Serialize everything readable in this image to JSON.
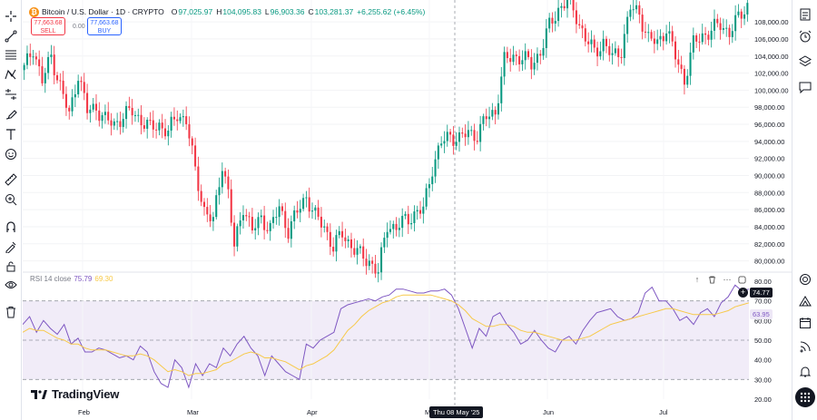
{
  "symbol": {
    "title": "Bitcoin / U.S. Dollar · 1D · CRYPTO",
    "logo_glyph": "₿",
    "ohlc": [
      {
        "label": "O",
        "value": "97,025.97"
      },
      {
        "label": "H",
        "value": "104,095.83"
      },
      {
        "label": "L",
        "value": "96,903.36"
      },
      {
        "label": "C",
        "value": "103,281.37"
      }
    ],
    "change": "+6,255.62 (+6.45%)"
  },
  "trade": {
    "sell_price": "77,663.68",
    "sell_label": "SELL",
    "spread": "0.00",
    "buy_price": "77,663.68",
    "buy_label": "BUY"
  },
  "price_axis": [
    "108,000.00",
    "106,000.00",
    "104,000.00",
    "102,000.00",
    "100,000.00",
    "98,000.00",
    "96,000.00",
    "94,000.00",
    "92,000.00",
    "90,000.00",
    "88,000.00",
    "86,000.00",
    "84,000.00",
    "82,000.00",
    "80,000.00"
  ],
  "rsi_axis": [
    "80.00",
    "70.00",
    "60.00",
    "50.00",
    "40.00",
    "30.00",
    "20.00"
  ],
  "time_axis": [
    "Feb",
    "Mar",
    "Apr",
    "May",
    "Jun",
    "Jul"
  ],
  "rsi": {
    "label": "RSI 14 close",
    "value": "75.79",
    "ma_value": "69.30",
    "tag_value": "74.77",
    "tag2_value": "63.95"
  },
  "crosshair": {
    "date": "Thu 08 May '25"
  },
  "brand": "TradingView",
  "colors": {
    "up": "#089981",
    "down": "#f23645",
    "rsi": "#7e57c2",
    "rsi_ma": "#f7c948",
    "band": "#ede7f6"
  },
  "chart_data": [
    {
      "type": "candlestick",
      "title": "Bitcoin / U.S. Dollar · 1D · CRYPTO",
      "x_ticks": [
        "Feb",
        "Mar",
        "Apr",
        "May",
        "Jun",
        "Jul"
      ],
      "ylim": [
        79000,
        109500
      ],
      "anchors": [
        [
          0,
          102500
        ],
        [
          3,
          105000
        ],
        [
          6,
          101000
        ],
        [
          9,
          104000
        ],
        [
          12,
          100500
        ],
        [
          15,
          97000
        ],
        [
          18,
          102000
        ],
        [
          21,
          97500
        ],
        [
          24,
          98000
        ],
        [
          27,
          96500
        ],
        [
          30,
          96000
        ],
        [
          33,
          97000
        ],
        [
          36,
          97500
        ],
        [
          39,
          96500
        ],
        [
          42,
          95500
        ],
        [
          45,
          96000
        ],
        [
          48,
          95000
        ],
        [
          51,
          97200
        ],
        [
          54,
          96500
        ],
        [
          57,
          90500
        ],
        [
          60,
          86000
        ],
        [
          63,
          84500
        ],
        [
          66,
          91500
        ],
        [
          68,
          88000
        ],
        [
          70,
          81500
        ],
        [
          73,
          86500
        ],
        [
          76,
          83500
        ],
        [
          79,
          85000
        ],
        [
          82,
          83800
        ],
        [
          85,
          86200
        ],
        [
          88,
          83600
        ],
        [
          91,
          85700
        ],
        [
          94,
          87600
        ],
        [
          97,
          85200
        ],
        [
          100,
          84000
        ],
        [
          103,
          81600
        ],
        [
          106,
          83200
        ],
        [
          109,
          81800
        ],
        [
          112,
          80600
        ],
        [
          115,
          80000
        ],
        [
          118,
          78600
        ],
        [
          121,
          84300
        ],
        [
          124,
          83800
        ],
        [
          127,
          84800
        ],
        [
          130,
          85500
        ],
        [
          133,
          86000
        ],
        [
          136,
          91000
        ],
        [
          139,
          93800
        ],
        [
          142,
          94700
        ],
        [
          145,
          94300
        ],
        [
          148,
          95000
        ],
        [
          151,
          94800
        ],
        [
          154,
          96800
        ],
        [
          157,
          97500
        ],
        [
          160,
          103400
        ],
        [
          163,
          104000
        ],
        [
          166,
          103800
        ],
        [
          169,
          103000
        ],
        [
          172,
          104500
        ],
        [
          175,
          107500
        ],
        [
          178,
          109500
        ],
        [
          181,
          110500
        ],
        [
          184,
          108700
        ],
        [
          187,
          106000
        ],
        [
          190,
          104500
        ],
        [
          193,
          105600
        ],
        [
          196,
          103800
        ],
        [
          199,
          104800
        ],
        [
          202,
          109600
        ],
        [
          205,
          109000
        ],
        [
          208,
          106000
        ],
        [
          211,
          105500
        ],
        [
          214,
          107300
        ],
        [
          217,
          103900
        ],
        [
          220,
          101200
        ],
        [
          223,
          105400
        ],
        [
          226,
          106400
        ],
        [
          229,
          107000
        ],
        [
          232,
          107700
        ],
        [
          235,
          106800
        ],
        [
          238,
          108400
        ],
        [
          241,
          110000
        ]
      ]
    },
    {
      "type": "line",
      "title": "RSI 14 close",
      "ylim": [
        20,
        80
      ],
      "y_ticks": [
        80,
        70,
        60,
        50,
        40,
        30,
        20
      ],
      "bands": {
        "upper": 70,
        "middle": 50,
        "lower": 30
      },
      "series": [
        {
          "name": "RSI",
          "values": [
            58,
            62,
            54,
            60,
            56,
            53,
            58,
            48,
            51,
            44,
            44,
            46,
            45,
            43,
            41,
            42,
            40,
            47,
            44,
            34,
            28,
            26,
            40,
            36,
            26,
            38,
            32,
            38,
            36,
            46,
            42,
            48,
            52,
            46,
            42,
            32,
            42,
            38,
            34,
            32,
            30,
            48,
            46,
            50,
            52,
            54,
            66,
            68,
            69,
            70,
            71,
            70,
            72,
            73,
            76,
            76,
            75,
            74,
            74,
            75,
            75,
            76,
            73,
            66,
            56,
            46,
            56,
            52,
            62,
            64,
            58,
            54,
            48,
            50,
            55,
            50,
            46,
            44,
            50,
            52,
            48,
            55,
            60,
            64,
            65,
            66,
            62,
            60,
            61,
            64,
            74,
            77,
            70,
            70,
            66,
            60,
            62,
            58,
            64,
            66,
            62,
            69,
            72,
            78,
            75,
            76
          ]
        },
        {
          "name": "RSI-based MA",
          "values": [
            54,
            56,
            55,
            55,
            53,
            51,
            50,
            48,
            48,
            46,
            45,
            45,
            45,
            44,
            43,
            42,
            42,
            43,
            42,
            40,
            37,
            34,
            35,
            34,
            32,
            33,
            33,
            34,
            35,
            38,
            39,
            41,
            43,
            44,
            43,
            41,
            41,
            40,
            39,
            37,
            35,
            37,
            38,
            40,
            42,
            45,
            50,
            55,
            58,
            62,
            65,
            67,
            69,
            70,
            72,
            73,
            73,
            73,
            73,
            73,
            72,
            71,
            70,
            68,
            65,
            61,
            59,
            57,
            57,
            58,
            58,
            57,
            55,
            54,
            54,
            53,
            52,
            51,
            50,
            50,
            50,
            51,
            52,
            54,
            56,
            58,
            59,
            60,
            61,
            62,
            63,
            64,
            65,
            66,
            66,
            65,
            64,
            63,
            63,
            63,
            63,
            64,
            65,
            67,
            68,
            69
          ]
        }
      ]
    }
  ]
}
